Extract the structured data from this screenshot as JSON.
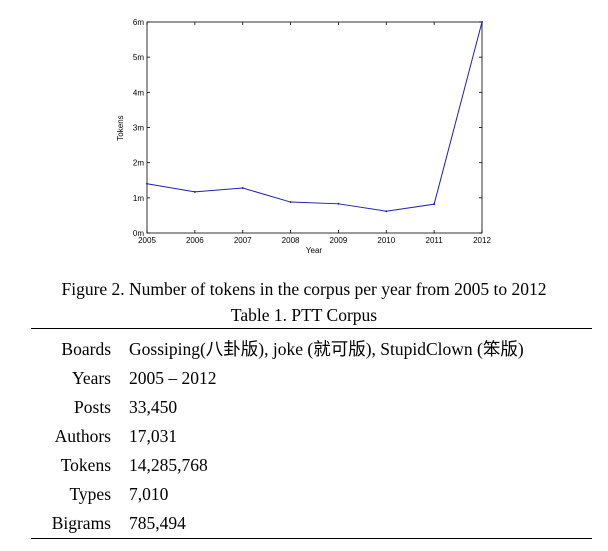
{
  "figure": {
    "caption": "Figure 2. Number of tokens in the corpus per year from 2005 to 2012"
  },
  "chart_data": {
    "type": "line",
    "xlabel": "Year",
    "ylabel": "Tokens",
    "x": [
      "2005",
      "2006",
      "2007",
      "2008",
      "2009",
      "2010",
      "2011",
      "2012"
    ],
    "series": [
      {
        "values": [
          1.4,
          1.17,
          1.28,
          0.88,
          0.83,
          0.62,
          0.82,
          6.0
        ],
        "color": "#1f1fb4"
      }
    ],
    "y_ticks": [
      {
        "value": 0,
        "label": "0m"
      },
      {
        "value": 1,
        "label": "1m"
      },
      {
        "value": 2,
        "label": "2m"
      },
      {
        "value": 3,
        "label": "3m"
      },
      {
        "value": 4,
        "label": "4m"
      },
      {
        "value": 5,
        "label": "5m"
      },
      {
        "value": 6,
        "label": "6m"
      }
    ],
    "ylim": [
      0,
      6
    ],
    "grid": false
  },
  "table": {
    "caption": "Table 1. PTT Corpus",
    "rows": [
      {
        "label": "Boards",
        "value": "Gossiping(八卦版), joke (就可版), StupidClown (笨版)"
      },
      {
        "label": "Years",
        "value": "2005 – 2012"
      },
      {
        "label": "Posts",
        "value": "33,450"
      },
      {
        "label": "Authors",
        "value": "17,031"
      },
      {
        "label": "Tokens",
        "value": "14,285,768"
      },
      {
        "label": "Types",
        "value": "7,010"
      },
      {
        "label": "Bigrams",
        "value": "785,494"
      }
    ]
  }
}
